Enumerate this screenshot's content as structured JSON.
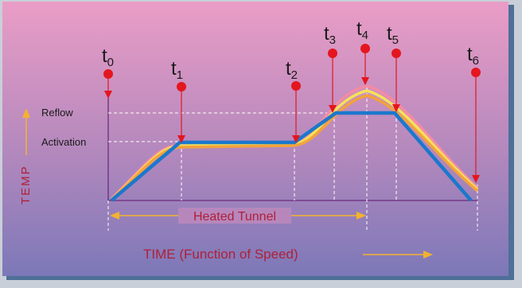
{
  "axis": {
    "y_label": "TEMP",
    "x_label": "TIME (Function of Speed)"
  },
  "levels": {
    "reflow": "Reflow",
    "activation": "Activation"
  },
  "tunnel_label": "Heated Tunnel",
  "markers": [
    {
      "name": "t",
      "sub": "0"
    },
    {
      "name": "t",
      "sub": "1"
    },
    {
      "name": "t",
      "sub": "2"
    },
    {
      "name": "t",
      "sub": "3"
    },
    {
      "name": "t",
      "sub": "4"
    },
    {
      "name": "t",
      "sub": "5"
    },
    {
      "name": "t",
      "sub": "6"
    }
  ],
  "colors": {
    "background_top": "#e79ac3",
    "background_bottom": "#7f78b8",
    "frame": "#4a6f9c",
    "arrow_red": "#e4161f",
    "label_red": "#b02038",
    "accent_yellow": "#f4b230",
    "profile_blue": "#1b78cc",
    "profile_orange": "#f2a33c",
    "profile_yellow": "#f6e05a",
    "profile_pink": "#f48aa6",
    "axis_purple": "#6b2d7e"
  }
}
